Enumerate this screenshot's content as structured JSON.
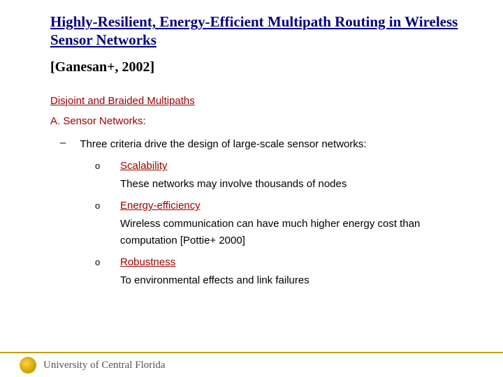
{
  "colors": {
    "title": "#000080",
    "accent": "#a00000",
    "body": "#000000",
    "footer_rule": "#c4a000",
    "footer_text": "#555555",
    "logo_gradient": [
      "#ffd040",
      "#c4a000",
      "#8a7000"
    ],
    "background": "#ffffff"
  },
  "fonts": {
    "title_family": "Comic Sans MS",
    "title_size_pt": 21,
    "citation_size_pt": 20,
    "body_family": "Arial",
    "body_size_pt": 15
  },
  "title": "Highly-Resilient, Energy-Efficient Multipath Routing in Wireless Sensor Networks",
  "citation": "[Ganesan+, 2002]",
  "section_head": "Disjoint and Braided Multipaths",
  "subsection": "A. Sensor Networks:",
  "intro": "Three criteria drive the design of large-scale sensor networks:",
  "criteria": [
    {
      "label": "Scalability",
      "desc": "These networks may involve thousands of nodes"
    },
    {
      "label": "Energy-efficiency",
      "desc": "Wireless communication can have much higher energy cost than computation [Pottie+ 2000]"
    },
    {
      "label": "Robustness",
      "desc": "To environmental effects and link failures"
    }
  ],
  "footer": {
    "org": "University of Central Florida",
    "logo_name": "ucf-pegasus-seal"
  }
}
